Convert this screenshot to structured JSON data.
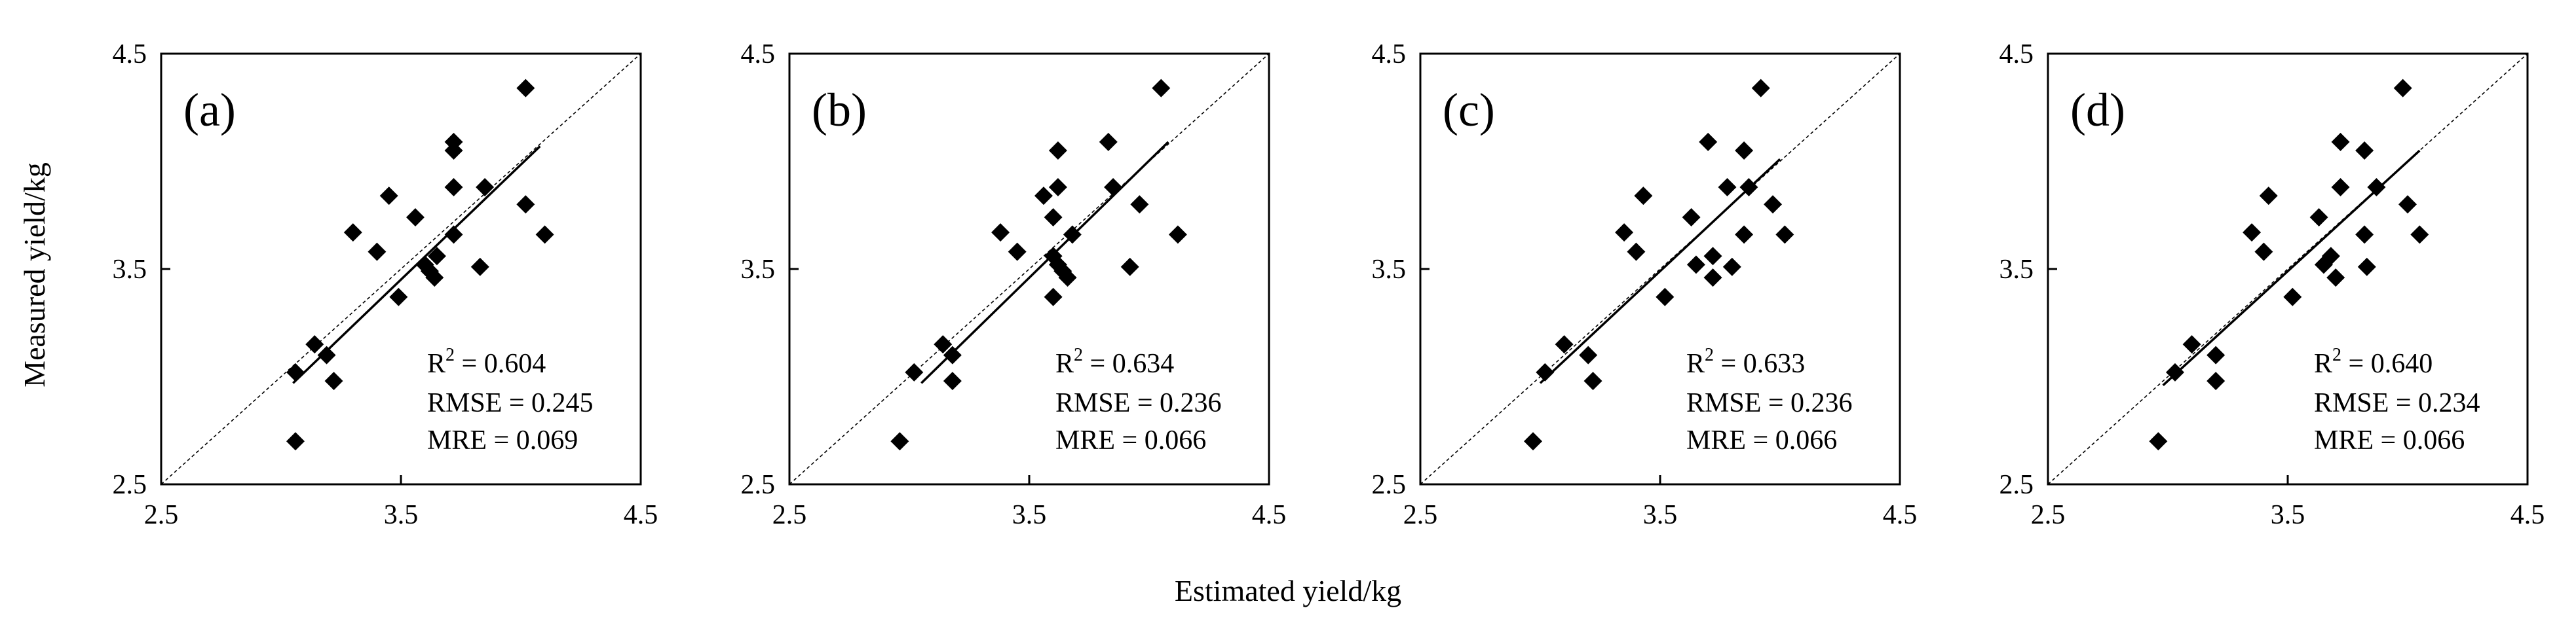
{
  "figure": {
    "ylabel": "Measured yield/kg",
    "xlabel": "Estimated yield/kg"
  },
  "chart_data": [
    {
      "type": "scatter",
      "label": "(a)",
      "xlim": [
        2.5,
        4.5
      ],
      "ylim": [
        2.5,
        4.5
      ],
      "xticks": [
        "2.5",
        "3.5",
        "4.5"
      ],
      "yticks": [
        "2.5",
        "3.5",
        "4.5"
      ],
      "stats": {
        "r2_prefix": "R",
        "r2_sup": "2",
        "r2_rest": " = 0.604",
        "rmse": "RMSE = 0.245",
        "mre": "MRE = 0.069"
      },
      "fit_line": {
        "x": [
          3.05,
          4.08
        ],
        "y": [
          2.97,
          4.07
        ]
      },
      "points": [
        {
          "x": 4.02,
          "y": 4.34
        },
        {
          "x": 3.72,
          "y": 4.09
        },
        {
          "x": 3.72,
          "y": 4.05
        },
        {
          "x": 3.72,
          "y": 3.88
        },
        {
          "x": 3.85,
          "y": 3.88
        },
        {
          "x": 3.45,
          "y": 3.84
        },
        {
          "x": 4.02,
          "y": 3.8
        },
        {
          "x": 3.56,
          "y": 3.74
        },
        {
          "x": 3.3,
          "y": 3.67
        },
        {
          "x": 3.72,
          "y": 3.66
        },
        {
          "x": 4.1,
          "y": 3.66
        },
        {
          "x": 3.4,
          "y": 3.58
        },
        {
          "x": 3.65,
          "y": 3.56
        },
        {
          "x": 3.6,
          "y": 3.52
        },
        {
          "x": 3.83,
          "y": 3.51
        },
        {
          "x": 3.62,
          "y": 3.49
        },
        {
          "x": 3.64,
          "y": 3.46
        },
        {
          "x": 3.49,
          "y": 3.37
        },
        {
          "x": 3.14,
          "y": 3.15
        },
        {
          "x": 3.19,
          "y": 3.1
        },
        {
          "x": 3.06,
          "y": 3.02
        },
        {
          "x": 3.22,
          "y": 2.98
        },
        {
          "x": 3.06,
          "y": 2.7
        }
      ]
    },
    {
      "type": "scatter",
      "label": "(b)",
      "xlim": [
        2.5,
        4.5
      ],
      "ylim": [
        2.5,
        4.5
      ],
      "xticks": [
        "2.5",
        "3.5",
        "4.5"
      ],
      "yticks": [
        "2.5",
        "3.5",
        "4.5"
      ],
      "stats": {
        "r2_prefix": "R",
        "r2_sup": "2",
        "r2_rest": " = 0.634",
        "rmse": "RMSE = 0.236",
        "mre": "MRE = 0.066"
      },
      "fit_line": {
        "x": [
          3.05,
          4.08
        ],
        "y": [
          2.97,
          4.09
        ]
      },
      "points": [
        {
          "x": 4.05,
          "y": 4.34
        },
        {
          "x": 3.83,
          "y": 4.09
        },
        {
          "x": 3.62,
          "y": 4.05
        },
        {
          "x": 3.62,
          "y": 3.88
        },
        {
          "x": 3.85,
          "y": 3.88
        },
        {
          "x": 3.56,
          "y": 3.84
        },
        {
          "x": 3.96,
          "y": 3.8
        },
        {
          "x": 3.6,
          "y": 3.74
        },
        {
          "x": 3.38,
          "y": 3.67
        },
        {
          "x": 3.68,
          "y": 3.66
        },
        {
          "x": 4.12,
          "y": 3.66
        },
        {
          "x": 3.45,
          "y": 3.58
        },
        {
          "x": 3.6,
          "y": 3.56
        },
        {
          "x": 3.62,
          "y": 3.52
        },
        {
          "x": 3.92,
          "y": 3.51
        },
        {
          "x": 3.64,
          "y": 3.49
        },
        {
          "x": 3.66,
          "y": 3.46
        },
        {
          "x": 3.6,
          "y": 3.37
        },
        {
          "x": 3.14,
          "y": 3.15
        },
        {
          "x": 3.18,
          "y": 3.1
        },
        {
          "x": 3.02,
          "y": 3.02
        },
        {
          "x": 3.18,
          "y": 2.98
        },
        {
          "x": 2.96,
          "y": 2.7
        }
      ]
    },
    {
      "type": "scatter",
      "label": "(c)",
      "xlim": [
        2.5,
        4.5
      ],
      "ylim": [
        2.5,
        4.5
      ],
      "xticks": [
        "2.5",
        "3.5",
        "4.5"
      ],
      "yticks": [
        "2.5",
        "3.5",
        "4.5"
      ],
      "stats": {
        "r2_prefix": "R",
        "r2_sup": "2",
        "r2_rest": " = 0.633",
        "rmse": "RMSE = 0.236",
        "mre": "MRE = 0.066"
      },
      "fit_line": {
        "x": [
          3.0,
          4.0
        ],
        "y": [
          2.97,
          4.01
        ]
      },
      "points": [
        {
          "x": 3.92,
          "y": 4.34
        },
        {
          "x": 3.7,
          "y": 4.09
        },
        {
          "x": 3.85,
          "y": 4.05
        },
        {
          "x": 3.78,
          "y": 3.88
        },
        {
          "x": 3.87,
          "y": 3.88
        },
        {
          "x": 3.43,
          "y": 3.84
        },
        {
          "x": 3.97,
          "y": 3.8
        },
        {
          "x": 3.63,
          "y": 3.74
        },
        {
          "x": 3.35,
          "y": 3.67
        },
        {
          "x": 3.85,
          "y": 3.66
        },
        {
          "x": 4.02,
          "y": 3.66
        },
        {
          "x": 3.4,
          "y": 3.58
        },
        {
          "x": 3.72,
          "y": 3.56
        },
        {
          "x": 3.65,
          "y": 3.52
        },
        {
          "x": 3.8,
          "y": 3.51
        },
        {
          "x": 3.72,
          "y": 3.46
        },
        {
          "x": 3.52,
          "y": 3.37
        },
        {
          "x": 3.1,
          "y": 3.15
        },
        {
          "x": 3.2,
          "y": 3.1
        },
        {
          "x": 3.02,
          "y": 3.02
        },
        {
          "x": 3.22,
          "y": 2.98
        },
        {
          "x": 2.97,
          "y": 2.7
        }
      ]
    },
    {
      "type": "scatter",
      "label": "(d)",
      "xlim": [
        2.5,
        4.5
      ],
      "ylim": [
        2.5,
        4.5
      ],
      "xticks": [
        "2.5",
        "3.5",
        "4.5"
      ],
      "yticks": [
        "2.5",
        "3.5",
        "4.5"
      ],
      "stats": {
        "r2_prefix": "R",
        "r2_sup": "2",
        "r2_rest": " = 0.640",
        "rmse": "RMSE = 0.234",
        "mre": "MRE = 0.066"
      },
      "fit_line": {
        "x": [
          2.98,
          4.05
        ],
        "y": [
          2.96,
          4.05
        ]
      },
      "points": [
        {
          "x": 3.98,
          "y": 4.34
        },
        {
          "x": 3.72,
          "y": 4.09
        },
        {
          "x": 3.82,
          "y": 4.05
        },
        {
          "x": 3.72,
          "y": 3.88
        },
        {
          "x": 3.87,
          "y": 3.88
        },
        {
          "x": 3.42,
          "y": 3.84
        },
        {
          "x": 4.0,
          "y": 3.8
        },
        {
          "x": 3.63,
          "y": 3.74
        },
        {
          "x": 3.35,
          "y": 3.67
        },
        {
          "x": 3.82,
          "y": 3.66
        },
        {
          "x": 4.05,
          "y": 3.66
        },
        {
          "x": 3.4,
          "y": 3.58
        },
        {
          "x": 3.68,
          "y": 3.56
        },
        {
          "x": 3.65,
          "y": 3.52
        },
        {
          "x": 3.83,
          "y": 3.51
        },
        {
          "x": 3.7,
          "y": 3.46
        },
        {
          "x": 3.52,
          "y": 3.37
        },
        {
          "x": 3.1,
          "y": 3.15
        },
        {
          "x": 3.2,
          "y": 3.1
        },
        {
          "x": 3.03,
          "y": 3.02
        },
        {
          "x": 3.2,
          "y": 2.98
        },
        {
          "x": 2.96,
          "y": 2.7
        }
      ]
    }
  ]
}
